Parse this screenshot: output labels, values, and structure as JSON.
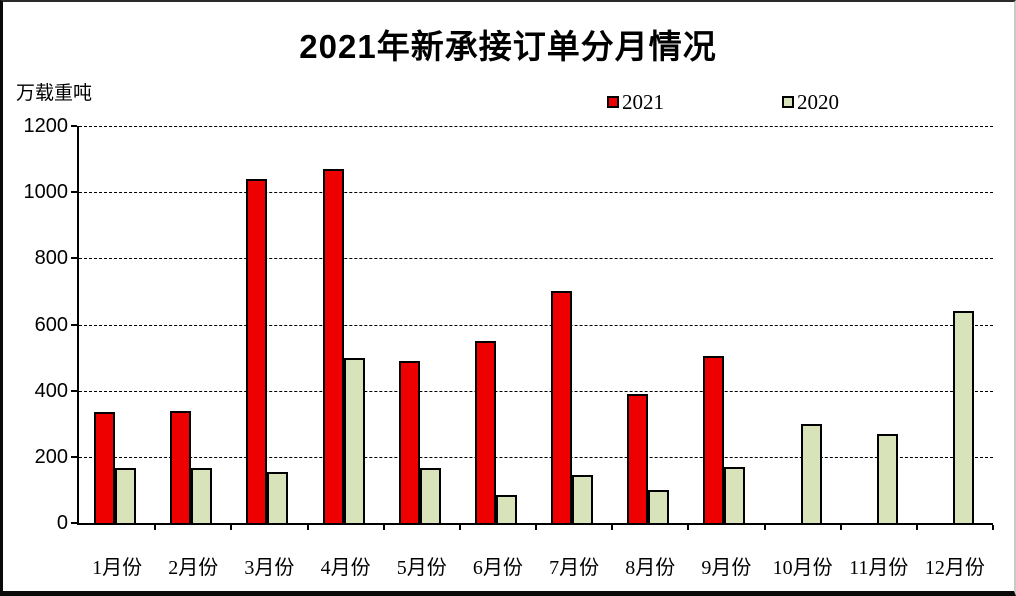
{
  "title": "2021年新承接订单分月情况",
  "unit_label": "万载重吨",
  "legend": {
    "items": [
      {
        "label": "2021",
        "color": "#ee0000"
      },
      {
        "label": "2020",
        "color": "#d9e3ba"
      }
    ]
  },
  "chart_data": {
    "type": "bar",
    "title": "2021年新承接订单分月情况",
    "ylabel": "万载重吨",
    "categories": [
      "1月份",
      "2月份",
      "3月份",
      "4月份",
      "5月份",
      "6月份",
      "7月份",
      "8月份",
      "9月份",
      "10月份",
      "11月份",
      "12月份"
    ],
    "series": [
      {
        "name": "2021",
        "color": "#ee0000",
        "values": [
          335,
          340,
          1040,
          1070,
          490,
          550,
          700,
          390,
          505,
          0,
          0,
          0
        ]
      },
      {
        "name": "2020",
        "color": "#d9e3ba",
        "values": [
          165,
          165,
          155,
          500,
          165,
          85,
          145,
          100,
          170,
          300,
          270,
          640
        ]
      }
    ],
    "ylim": [
      0,
      1200
    ],
    "ytick_step": 200,
    "ytick_labels": [
      "1200",
      "1000",
      "800",
      "600",
      "400",
      "200",
      "0"
    ],
    "grid": "horizontal-dashed",
    "legend_position": "top",
    "bar_border_color": "#000000"
  }
}
